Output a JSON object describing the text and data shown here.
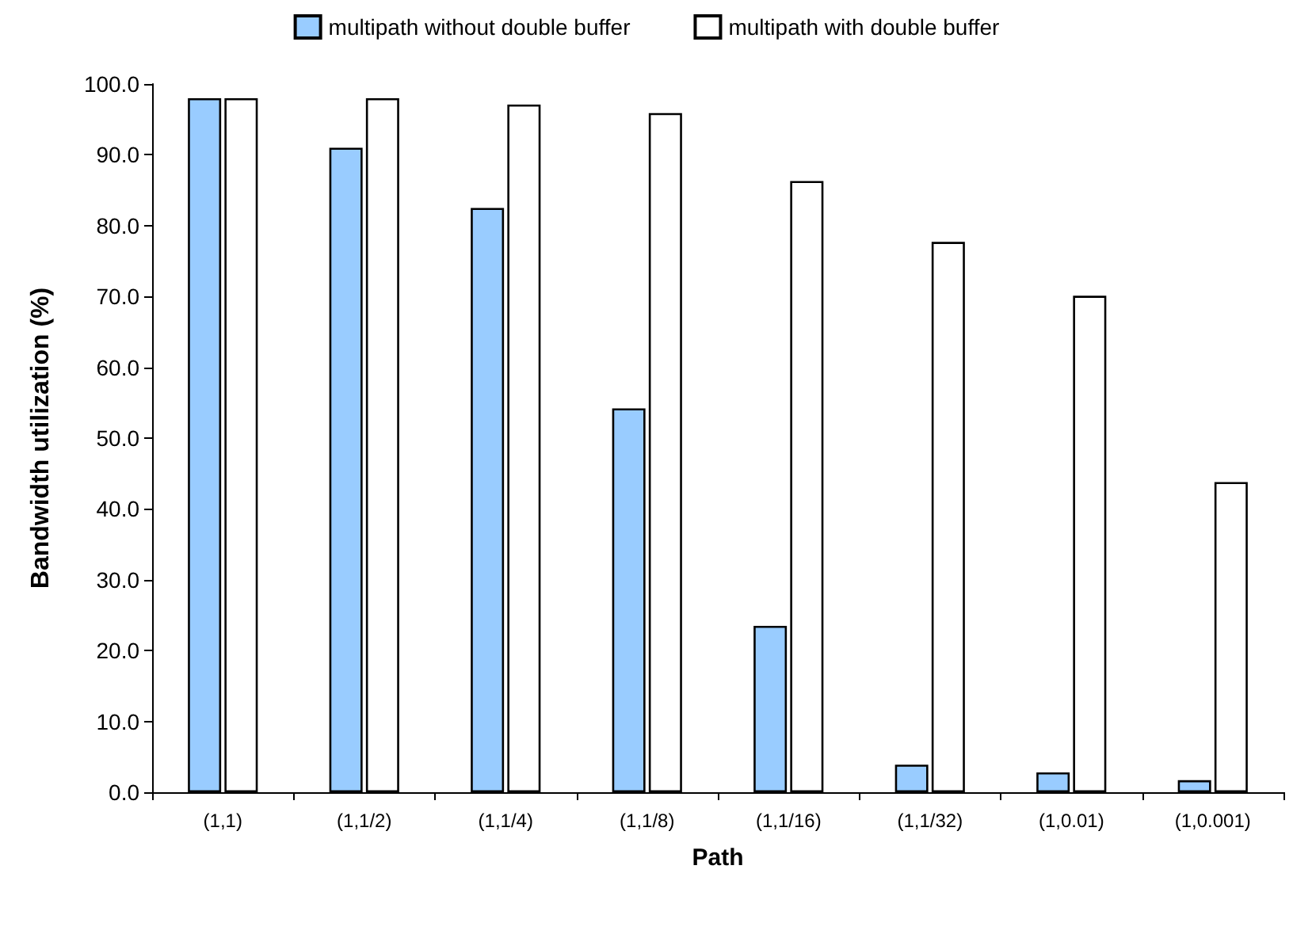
{
  "chart_data": {
    "type": "bar",
    "xlabel": "Path",
    "ylabel": "Bandwidth utilization (%)",
    "categories": [
      "(1,1)",
      "(1,1/2)",
      "(1,1/4)",
      "(1,1/8)",
      "(1,1/16)",
      "(1,1/32)",
      "(1,0.01)",
      "(1,0.001)"
    ],
    "series": [
      {
        "name": "multipath without double buffer",
        "color": "#99ccff",
        "values": [
          98.0,
          91.0,
          82.5,
          54.2,
          23.5,
          3.9,
          2.8,
          1.7
        ]
      },
      {
        "name": "multipath with double buffer",
        "color": "#ffffff",
        "values": [
          98.0,
          98.0,
          97.1,
          95.9,
          86.3,
          77.7,
          70.1,
          43.8
        ]
      }
    ],
    "ylim": [
      0,
      100
    ],
    "yticks": [
      {
        "value": 0,
        "label": "0.0"
      },
      {
        "value": 10,
        "label": "10.0"
      },
      {
        "value": 20,
        "label": "20.0"
      },
      {
        "value": 30,
        "label": "30.0"
      },
      {
        "value": 40,
        "label": "40.0"
      },
      {
        "value": 50,
        "label": "50.0"
      },
      {
        "value": 60,
        "label": "60.0"
      },
      {
        "value": 70,
        "label": "70.0"
      },
      {
        "value": 80,
        "label": "80.0"
      },
      {
        "value": 90,
        "label": "90.0"
      },
      {
        "value": 100,
        "label": "100.0"
      }
    ],
    "grid": false,
    "legend": "top"
  }
}
